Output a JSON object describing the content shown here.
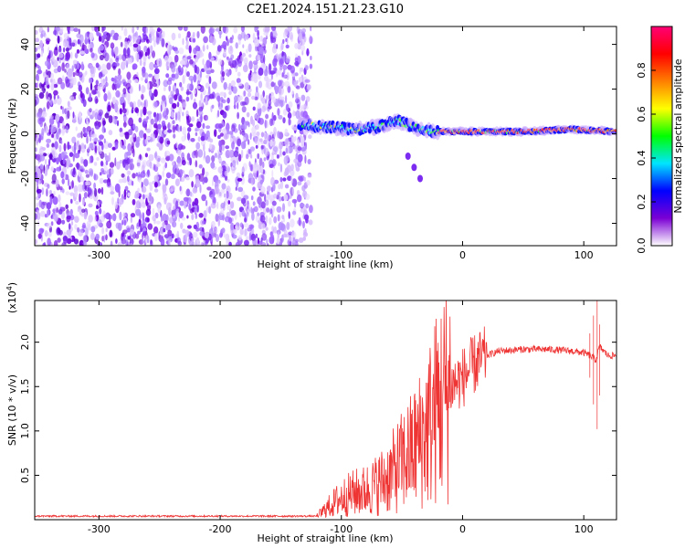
{
  "figure_title": "C2E1.2024.151.21.23.G10",
  "chart_data": [
    {
      "type": "heatmap",
      "title": "",
      "xlabel": "Height of straight line (km)",
      "ylabel": "Frequency (Hz)",
      "xlim": [
        -353,
        127
      ],
      "ylim": [
        -50,
        48
      ],
      "xticks": [
        -300,
        -200,
        -100,
        0,
        100
      ],
      "yticks": [
        -40,
        -20,
        0,
        20,
        40
      ],
      "colorbar": {
        "label": "Normalized spectral amplitude",
        "ticks": [
          "0.0",
          "0.2",
          "0.4",
          "0.6",
          "0.8"
        ],
        "range": [
          0,
          1
        ],
        "colors": [
          "#ffffff",
          "#7b00d4",
          "#0000ff",
          "#00e5ff",
          "#00ff00",
          "#ffff00",
          "#ff7f00",
          "#ff0000",
          "#ff0077"
        ]
      },
      "noise_region_x": [
        -353,
        -125
      ],
      "signal_track": [
        {
          "x": -135,
          "y": 4
        },
        {
          "x": -110,
          "y": 3
        },
        {
          "x": -90,
          "y": 2
        },
        {
          "x": -70,
          "y": 3
        },
        {
          "x": -55,
          "y": 6
        },
        {
          "x": -40,
          "y": 3
        },
        {
          "x": -25,
          "y": 1
        },
        {
          "x": 0,
          "y": 1
        },
        {
          "x": 50,
          "y": 1
        },
        {
          "x": 90,
          "y": 2
        },
        {
          "x": 127,
          "y": 1
        }
      ],
      "branch_track": [
        {
          "x": -45,
          "y": -10
        },
        {
          "x": -40,
          "y": -15
        },
        {
          "x": -35,
          "y": -20
        }
      ]
    },
    {
      "type": "line",
      "title": "",
      "xlabel": "Height of straight line (km)",
      "ylabel": "SNR (10 * v/v)",
      "multiplier": "(x10",
      "multiplier_exp": "4",
      "multiplier_close": ")",
      "xlim": [
        -353,
        127
      ],
      "ylim": [
        0,
        2.47
      ],
      "xticks": [
        -300,
        -200,
        -100,
        0,
        100
      ],
      "yticks": [
        0.5,
        1.0,
        1.5,
        2.0
      ],
      "ytick_labels": [
        "0.5",
        "1.0",
        "1.5",
        "2.0"
      ],
      "color": "#ef3434",
      "series": [
        {
          "x": [
            -353,
            -300,
            -250,
            -200,
            -150,
            -120,
            -110,
            -100,
            -90,
            -80,
            -70,
            -60,
            -50,
            -40,
            -30,
            -20,
            -10,
            0,
            10,
            20,
            30,
            50,
            70,
            90,
            100,
            105,
            110,
            113,
            120,
            127
          ],
          "values": [
            0.04,
            0.04,
            0.04,
            0.04,
            0.04,
            0.04,
            0.15,
            0.25,
            0.3,
            0.33,
            0.4,
            0.5,
            0.65,
            0.8,
            1.0,
            1.3,
            1.5,
            1.6,
            1.75,
            1.85,
            1.9,
            1.92,
            1.92,
            1.9,
            1.88,
            1.85,
            1.8,
            1.95,
            1.85,
            1.85
          ]
        }
      ],
      "spikes_range": [
        0.02,
        2.47
      ]
    }
  ]
}
